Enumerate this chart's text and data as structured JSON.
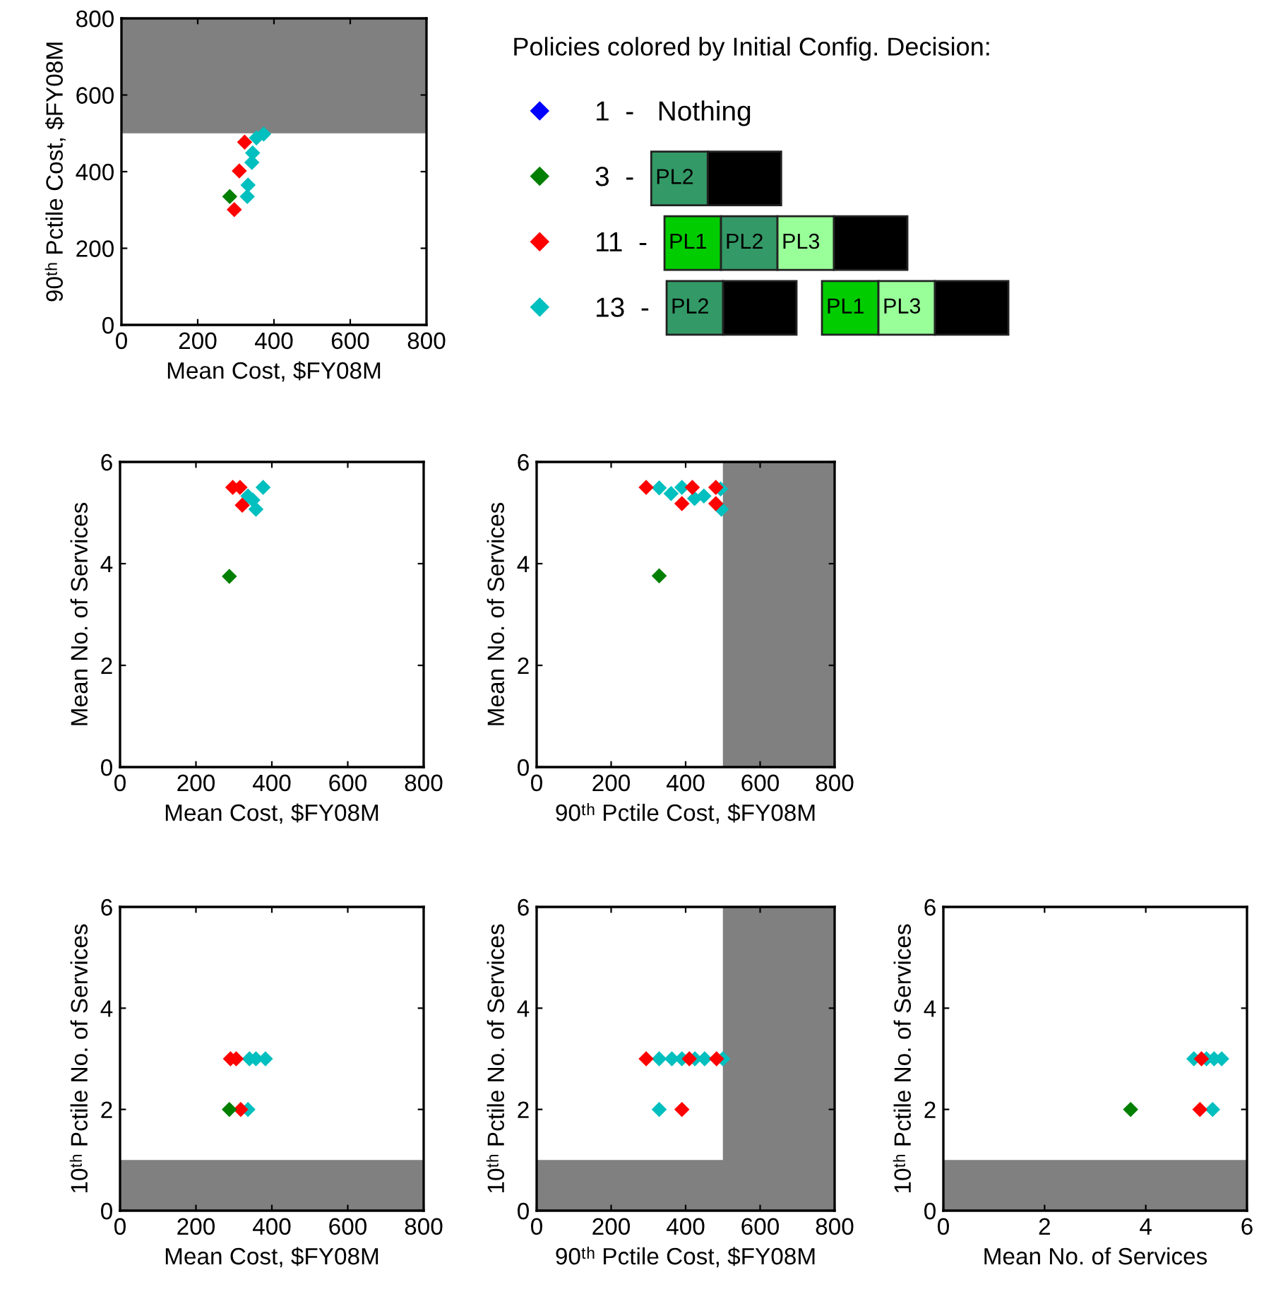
{
  "chart_data": [
    {
      "type": "scatter",
      "xlabel": "Mean Cost, $FY08M",
      "ylabel": "90ᵗʰ Pctile Cost, $FY08M",
      "xlim": [
        0,
        800
      ],
      "ylim": [
        0,
        800
      ],
      "xticks": [
        0,
        200,
        400,
        600,
        800
      ],
      "yticks": [
        0,
        200,
        400,
        600,
        800
      ],
      "marker": "diamond",
      "legend": "right",
      "legend_title": "Policies colored by Initial Config. Decision:",
      "bands": [
        {
          "axis": "y",
          "from": 500,
          "to": 800,
          "color": "#808080"
        }
      ],
      "annotations": [
        "PL2",
        "PL1",
        "PL2",
        "PL3",
        "PL2",
        "PL1",
        "PL3"
      ],
      "series": [
        {
          "name": "1  -   Nothing",
          "color": "#0000ff"
        },
        {
          "name": "3  -",
          "color": "#007f00",
          "x": [
            284
          ],
          "values": [
            335
          ]
        },
        {
          "name": "11  -",
          "color": "#ff0000",
          "x": [
            296,
            309,
            323
          ],
          "values": [
            301,
            402,
            477
          ]
        },
        {
          "name": "13  -",
          "color": "#00bfbf",
          "x": [
            330,
            332,
            342,
            344,
            354,
            373
          ],
          "values": [
            335,
            365,
            424,
            449,
            488,
            498
          ]
        }
      ]
    },
    {
      "type": "scatter",
      "xlabel": "Mean Cost, $FY08M",
      "ylabel": "Mean No. of Services",
      "xlim": [
        0,
        800
      ],
      "ylim": [
        0,
        6
      ],
      "xticks": [
        0,
        200,
        400,
        600,
        800
      ],
      "yticks": [
        0,
        2,
        4,
        6
      ],
      "marker": "diamond",
      "series": [
        {
          "color": "#007f00",
          "x": [
            288
          ],
          "values": [
            3.75
          ]
        },
        {
          "color": "#ff0000",
          "x": [
            297,
            316,
            322
          ],
          "values": [
            5.5,
            5.5,
            5.15
          ]
        },
        {
          "color": "#00bfbf",
          "x": [
            337,
            350,
            377,
            358
          ],
          "values": [
            5.33,
            5.25,
            5.5,
            5.07
          ]
        }
      ]
    },
    {
      "type": "scatter",
      "xlabel": "90ᵗʰ Pctile Cost, $FY08M",
      "ylabel": "Mean No. of Services",
      "xlim": [
        0,
        800
      ],
      "ylim": [
        0,
        6
      ],
      "xticks": [
        0,
        200,
        400,
        600,
        800
      ],
      "yticks": [
        0,
        2,
        4,
        6
      ],
      "marker": "diamond",
      "bands": [
        {
          "axis": "x",
          "from": 500,
          "to": 800,
          "color": "#808080"
        }
      ],
      "series": [
        {
          "color": "#007f00",
          "x": [
            329
          ],
          "values": [
            3.76
          ]
        },
        {
          "color": "#ff0000",
          "x": [
            294,
            390,
            418,
            481,
            481
          ],
          "values": [
            5.5,
            5.18,
            5.5,
            5.5,
            5.18
          ]
        },
        {
          "color": "#00bfbf",
          "x": [
            329,
            361,
            390,
            424,
            449,
            494,
            496
          ],
          "values": [
            5.49,
            5.38,
            5.5,
            5.28,
            5.33,
            5.47,
            5.07
          ]
        }
      ]
    },
    {
      "type": "scatter",
      "xlabel": "Mean Cost, $FY08M",
      "ylabel": "10ᵗʰ Pctile No. of Services",
      "xlim": [
        0,
        800
      ],
      "ylim": [
        0,
        6
      ],
      "xticks": [
        0,
        200,
        400,
        600,
        800
      ],
      "yticks": [
        0,
        2,
        4,
        6
      ],
      "marker": "diamond",
      "bands": [
        {
          "axis": "y",
          "from": 0,
          "to": 1,
          "color": "#808080"
        }
      ],
      "series": [
        {
          "color": "#007f00",
          "x": [
            288
          ],
          "values": [
            2
          ]
        },
        {
          "color": "#ff0000",
          "x": [
            291,
            306,
            318
          ],
          "values": [
            3,
            3,
            2
          ]
        },
        {
          "color": "#00bfbf",
          "x": [
            341,
            358,
            383,
            337
          ],
          "values": [
            3,
            3,
            3,
            2
          ]
        }
      ]
    },
    {
      "type": "scatter",
      "xlabel": "90ᵗʰ Pctile Cost, $FY08M",
      "ylabel": "10ᵗʰ Pctile No. of Services",
      "xlim": [
        0,
        800
      ],
      "ylim": [
        0,
        6
      ],
      "xticks": [
        0,
        200,
        400,
        600,
        800
      ],
      "yticks": [
        0,
        2,
        4,
        6
      ],
      "marker": "diamond",
      "bands": [
        {
          "axis": "x",
          "from": 500,
          "to": 800,
          "color": "#808080"
        },
        {
          "axis": "y",
          "from": 0,
          "to": 1,
          "color": "#808080"
        }
      ],
      "series": [
        {
          "color": "#ff0000",
          "x": [
            294,
            410,
            483,
            390
          ],
          "values": [
            3,
            3,
            3,
            2
          ]
        },
        {
          "color": "#00bfbf",
          "x": [
            329,
            363,
            390,
            425,
            451,
            500,
            329
          ],
          "values": [
            3,
            3,
            3,
            3,
            3,
            3,
            2
          ]
        }
      ]
    },
    {
      "type": "scatter",
      "xlabel": "Mean No. of Services",
      "ylabel": "10ᵗʰ Pctile No. of Services",
      "xlim": [
        0,
        6
      ],
      "ylim": [
        0,
        6
      ],
      "xticks": [
        0,
        2,
        4,
        6
      ],
      "yticks": [
        0,
        2,
        4,
        6
      ],
      "marker": "diamond",
      "bands": [
        {
          "axis": "y",
          "from": 0,
          "to": 1,
          "color": "#808080"
        }
      ],
      "series": [
        {
          "color": "#007f00",
          "x": [
            3.7
          ],
          "values": [
            2
          ]
        },
        {
          "color": "#ff0000",
          "x": [
            5.1,
            5.07
          ],
          "values": [
            3,
            2
          ]
        },
        {
          "color": "#00bfbf",
          "x": [
            4.95,
            5.2,
            5.35,
            5.5,
            5.32
          ],
          "values": [
            3,
            3,
            3,
            3,
            2
          ]
        }
      ]
    }
  ]
}
